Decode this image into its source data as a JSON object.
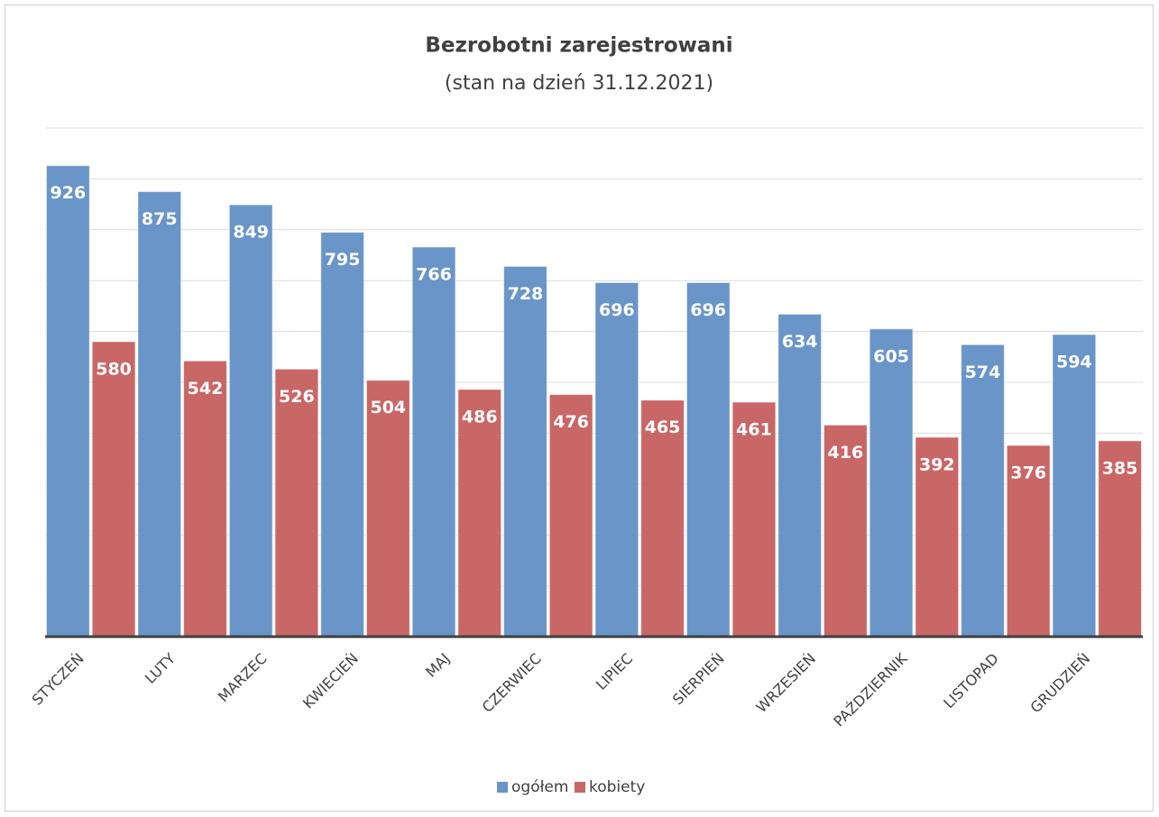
{
  "chart_data": {
    "type": "bar",
    "title": "Bezrobotni zarejestrowani",
    "subtitle": "(stan na dzień 31.12.2021)",
    "categories": [
      "STYCZEŃ",
      "LUTY",
      "MARZEC",
      "KWIECIEŃ",
      "MAJ",
      "CZERWIEC",
      "LIPIEC",
      "SIERPIEŃ",
      "WRZESIEŃ",
      "PAŹDZIERNIK",
      "LISTOPAD",
      "GRUDZIEŃ"
    ],
    "series": [
      {
        "name": "ogółem",
        "color": "#6995c9",
        "values": [
          926,
          875,
          849,
          795,
          766,
          728,
          696,
          696,
          634,
          605,
          574,
          594
        ]
      },
      {
        "name": "kobiety",
        "color": "#c96666",
        "values": [
          580,
          542,
          526,
          504,
          486,
          476,
          465,
          461,
          416,
          392,
          376,
          385
        ]
      }
    ],
    "ylim": [
      0,
      1000
    ],
    "yticks": [
      0,
      100,
      200,
      300,
      400,
      500,
      600,
      700,
      800,
      900,
      1000
    ],
    "grid": true,
    "legend": "bottom"
  }
}
